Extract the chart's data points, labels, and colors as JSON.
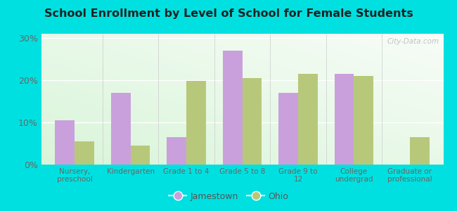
{
  "title": "School Enrollment by Level of School for Female Students",
  "categories": [
    "Nursery,\npreschool",
    "Kindergarten",
    "Grade 1 to 4",
    "Grade 5 to 8",
    "Grade 9 to\n12",
    "College\nundergrad",
    "Graduate or\nprofessional"
  ],
  "jamestown": [
    10.5,
    17.0,
    6.5,
    27.0,
    17.0,
    21.5,
    0.0
  ],
  "ohio": [
    5.5,
    4.5,
    19.8,
    20.5,
    21.5,
    21.0,
    6.5
  ],
  "jamestown_color": "#c9a0dc",
  "ohio_color": "#b8c87a",
  "background_outer": "#00e0e0",
  "background_inner_bottom_left": "#c8e8c0",
  "background_inner_top_right": "#f8fff8",
  "ylim": [
    0,
    31
  ],
  "yticks": [
    0,
    10,
    20,
    30
  ],
  "ytick_labels": [
    "0%",
    "10%",
    "20%",
    "30%"
  ],
  "bar_width": 0.35,
  "legend_labels": [
    "Jamestown",
    "Ohio"
  ],
  "watermark": "City-Data.com"
}
